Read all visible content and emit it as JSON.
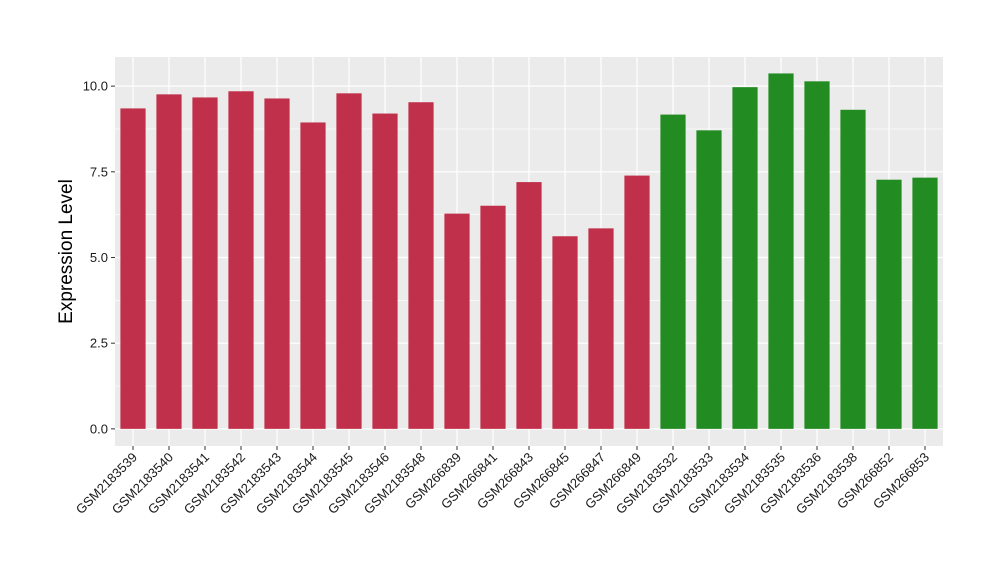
{
  "chart_data": {
    "type": "bar",
    "title": "",
    "xlabel": "",
    "ylabel": "Expression Level",
    "ylim": [
      -0.5,
      10.85
    ],
    "yticks": [
      0.0,
      2.5,
      5.0,
      7.5,
      10.0
    ],
    "ytick_labels": [
      "0.0",
      "2.5",
      "5.0",
      "7.5",
      "10.0"
    ],
    "grid": true,
    "legend": "none",
    "categories": [
      "GSM2183539",
      "GSM2183540",
      "GSM2183541",
      "GSM2183542",
      "GSM2183543",
      "GSM2183544",
      "GSM2183545",
      "GSM2183546",
      "GSM2183548",
      "GSM266839",
      "GSM266841",
      "GSM266843",
      "GSM266845",
      "GSM266847",
      "GSM266849",
      "GSM2183532",
      "GSM2183533",
      "GSM2183534",
      "GSM2183535",
      "GSM2183536",
      "GSM2183538",
      "GSM266852",
      "GSM266853"
    ],
    "values": [
      9.35,
      9.76,
      9.67,
      9.85,
      9.64,
      8.94,
      9.79,
      9.2,
      9.53,
      6.28,
      6.51,
      7.2,
      5.62,
      5.85,
      7.39,
      9.17,
      8.71,
      9.97,
      10.37,
      10.14,
      9.31,
      7.27,
      7.33
    ],
    "bar_colors": [
      "#c0304a",
      "#c0304a",
      "#c0304a",
      "#c0304a",
      "#c0304a",
      "#c0304a",
      "#c0304a",
      "#c0304a",
      "#c0304a",
      "#c0304a",
      "#c0304a",
      "#c0304a",
      "#c0304a",
      "#c0304a",
      "#c0304a",
      "#228b22",
      "#228b22",
      "#228b22",
      "#228b22",
      "#228b22",
      "#228b22",
      "#228b22",
      "#228b22"
    ],
    "panel_color": "#ebebeb",
    "grid_color": "#ffffff"
  }
}
